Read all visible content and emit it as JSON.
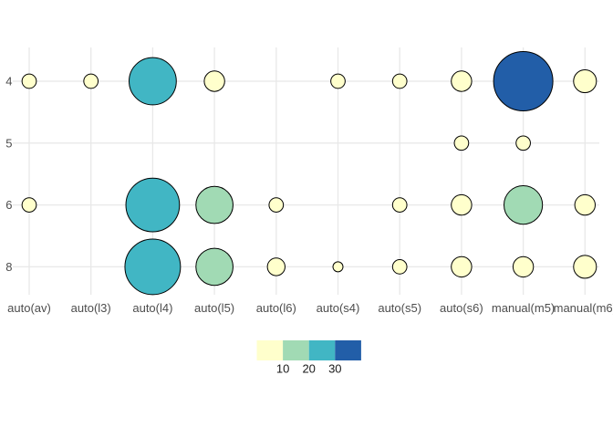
{
  "chart_data": {
    "type": "bubble",
    "title": "",
    "xlabel": "",
    "ylabel": "",
    "x_categories": [
      "auto(av)",
      "auto(l3)",
      "auto(l4)",
      "auto(l5)",
      "auto(l6)",
      "auto(s4)",
      "auto(s5)",
      "auto(s6)",
      "manual(m5)",
      "manual(m6)"
    ],
    "y_categories": [
      "4",
      "5",
      "6",
      "8"
    ],
    "points": [
      {
        "trans": "auto(av)",
        "cyl": "4",
        "n": 2
      },
      {
        "trans": "auto(l3)",
        "cyl": "4",
        "n": 2
      },
      {
        "trans": "auto(l4)",
        "cyl": "4",
        "n": 21
      },
      {
        "trans": "auto(l5)",
        "cyl": "4",
        "n": 4
      },
      {
        "trans": "auto(s4)",
        "cyl": "4",
        "n": 2
      },
      {
        "trans": "auto(s5)",
        "cyl": "4",
        "n": 2
      },
      {
        "trans": "auto(s6)",
        "cyl": "4",
        "n": 4
      },
      {
        "trans": "manual(m5)",
        "cyl": "4",
        "n": 33
      },
      {
        "trans": "manual(m6)",
        "cyl": "4",
        "n": 5
      },
      {
        "trans": "auto(s6)",
        "cyl": "5",
        "n": 2
      },
      {
        "trans": "manual(m5)",
        "cyl": "5",
        "n": 2
      },
      {
        "trans": "auto(av)",
        "cyl": "6",
        "n": 2
      },
      {
        "trans": "auto(l4)",
        "cyl": "6",
        "n": 27
      },
      {
        "trans": "auto(l5)",
        "cyl": "6",
        "n": 13
      },
      {
        "trans": "auto(l6)",
        "cyl": "6",
        "n": 2
      },
      {
        "trans": "auto(s5)",
        "cyl": "6",
        "n": 2
      },
      {
        "trans": "auto(s6)",
        "cyl": "6",
        "n": 4
      },
      {
        "trans": "manual(m5)",
        "cyl": "6",
        "n": 14
      },
      {
        "trans": "manual(m6)",
        "cyl": "6",
        "n": 4
      },
      {
        "trans": "auto(l4)",
        "cyl": "8",
        "n": 29
      },
      {
        "trans": "auto(l5)",
        "cyl": "8",
        "n": 13
      },
      {
        "trans": "auto(l6)",
        "cyl": "8",
        "n": 3
      },
      {
        "trans": "auto(s4)",
        "cyl": "8",
        "n": 1
      },
      {
        "trans": "auto(s5)",
        "cyl": "8",
        "n": 2
      },
      {
        "trans": "auto(s6)",
        "cyl": "8",
        "n": 4
      },
      {
        "trans": "manual(m5)",
        "cyl": "8",
        "n": 4
      },
      {
        "trans": "manual(m6)",
        "cyl": "8",
        "n": 5
      }
    ],
    "color_scale": {
      "bins": [
        {
          "max": 10,
          "color": "#ffffcc"
        },
        {
          "max": 20,
          "color": "#a1dab4"
        },
        {
          "max": 30,
          "color": "#41b6c4"
        },
        {
          "max": null,
          "color": "#225ea8"
        }
      ],
      "tick_labels": [
        "10",
        "20",
        "30"
      ]
    },
    "grid": true,
    "legend_position": "bottom",
    "xlim": null,
    "ylim": null
  },
  "colors": {
    "background": "#ffffff",
    "gridline": "#e8e8e8",
    "axis_text": "#4d4d4d",
    "legend_text": "#1a1a1a",
    "bubble_stroke": "#000000"
  }
}
